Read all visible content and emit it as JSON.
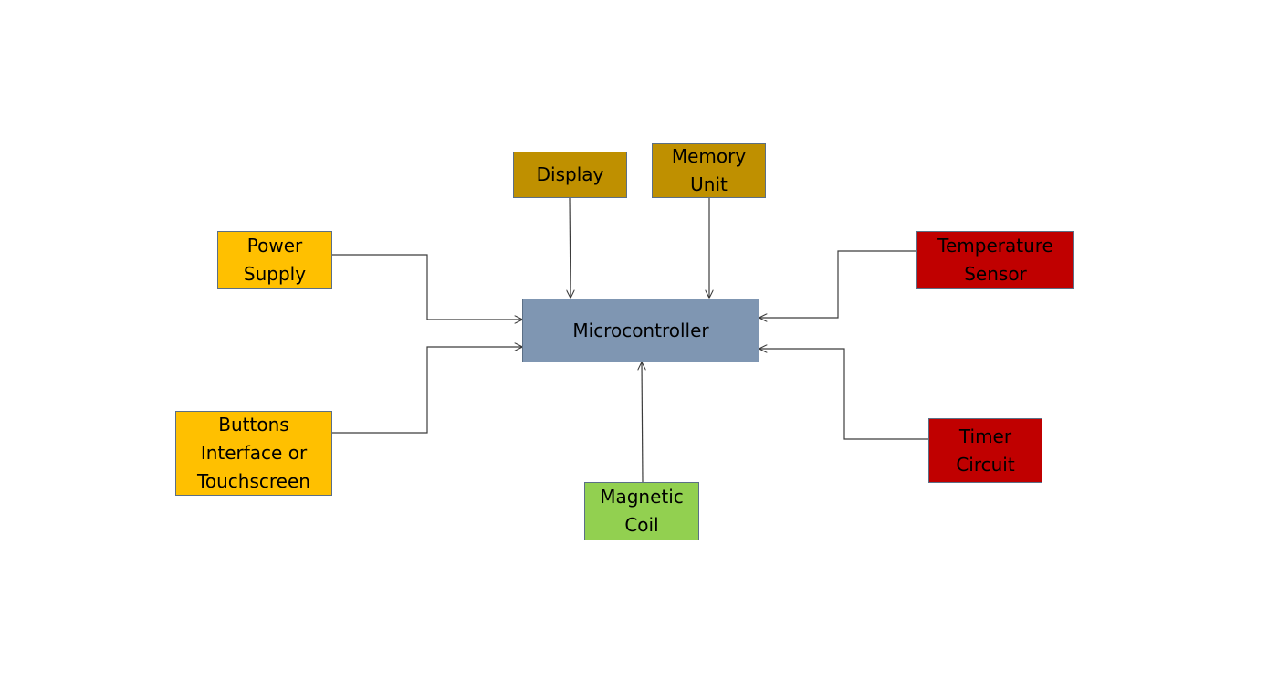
{
  "diagram": {
    "blocks": {
      "display": {
        "label": "Display",
        "color": "#bf9000"
      },
      "memory_unit": {
        "label": "Memory Unit",
        "color": "#bf9000"
      },
      "power_supply": {
        "label": "Power Supply",
        "color": "#ffc000"
      },
      "buttons": {
        "label": "Buttons Interface or Touchscreen",
        "color": "#ffc000"
      },
      "microcontroller": {
        "label": "Microcontroller",
        "color": "#7f96b2"
      },
      "temperature_sensor": {
        "label": "Temperature Sensor",
        "color": "#c00000"
      },
      "timer_circuit": {
        "label": "Timer Circuit",
        "color": "#c00000"
      },
      "magnetic_coil": {
        "label": "Magnetic Coil",
        "color": "#92d050"
      }
    },
    "connections": [
      {
        "from": "display",
        "to": "microcontroller"
      },
      {
        "from": "memory_unit",
        "to": "microcontroller"
      },
      {
        "from": "power_supply",
        "to": "microcontroller"
      },
      {
        "from": "buttons",
        "to": "microcontroller"
      },
      {
        "from": "temperature_sensor",
        "to": "microcontroller"
      },
      {
        "from": "timer_circuit",
        "to": "microcontroller"
      },
      {
        "from": "magnetic_coil",
        "to": "microcontroller"
      }
    ]
  }
}
